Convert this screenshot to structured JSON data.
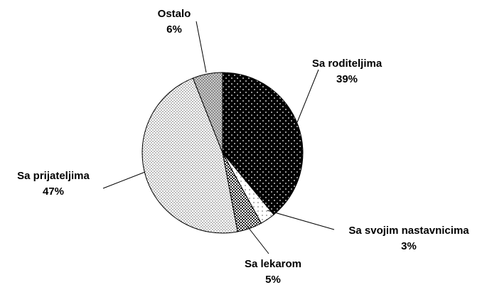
{
  "chart_data": {
    "type": "pie",
    "categories": [
      "Sa roditeljima",
      "Sa svojim nastavnicima",
      "Sa lekarom",
      "Sa prijateljima",
      "Ostalo"
    ],
    "values": [
      39,
      3,
      5,
      47,
      6
    ],
    "value_labels": [
      "39%",
      "3%",
      "5%",
      "47%",
      "6%"
    ]
  }
}
